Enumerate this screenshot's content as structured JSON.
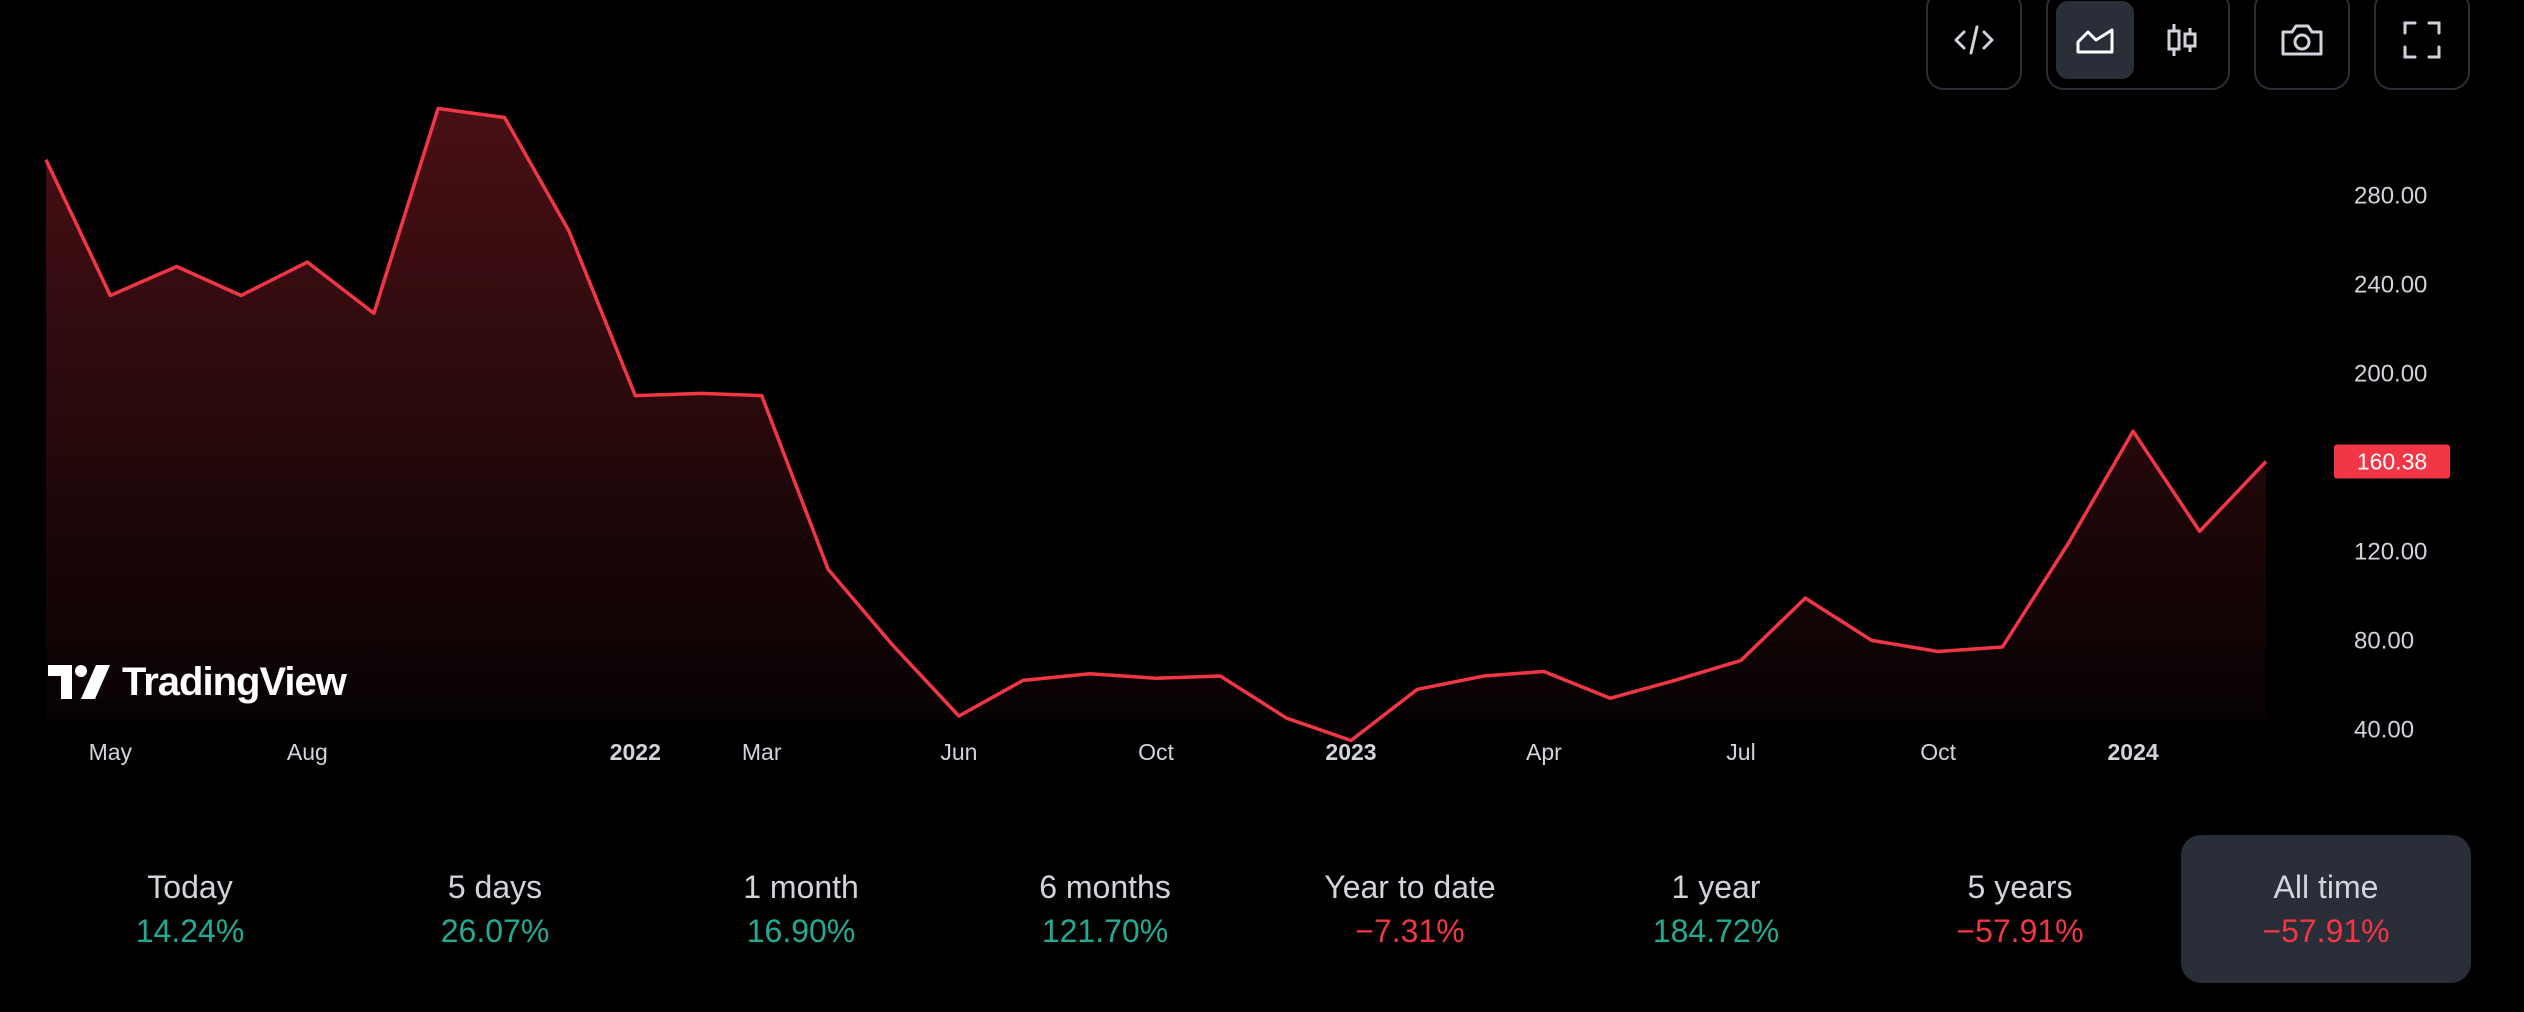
{
  "colors": {
    "background": "#000000",
    "line": "#f23645",
    "positive": "#22ab94",
    "negative": "#f23645",
    "text": "#d1d4dc"
  },
  "toolbar": {
    "embed_icon": "code-embed-icon",
    "area_chart_icon": "area-chart-icon",
    "candles_icon": "candlestick-icon",
    "snapshot_icon": "camera-icon",
    "fullscreen_icon": "fullscreen-icon",
    "active_chart_type": "area"
  },
  "watermark": {
    "text": "TradingView"
  },
  "chart_data": {
    "type": "area",
    "title": "",
    "xlabel": "",
    "ylabel": "",
    "ylim": [
      15,
      317
    ],
    "y_ticks": [
      "280.00",
      "240.00",
      "200.00",
      "120.00",
      "80.00",
      "40.00"
    ],
    "y_tick_values": [
      280,
      240,
      200,
      120,
      80,
      40
    ],
    "current_price": {
      "value": 160.38,
      "label": "160.38"
    },
    "x_ticks": [
      {
        "label": "May",
        "date": "2021-05-01",
        "year": false
      },
      {
        "label": "Aug",
        "date": "2021-08-01",
        "year": false
      },
      {
        "label": "2022",
        "date": "2022-01-01",
        "year": true
      },
      {
        "label": "Mar",
        "date": "2022-03-01",
        "year": false
      },
      {
        "label": "Jun",
        "date": "2022-06-01",
        "year": false
      },
      {
        "label": "Oct",
        "date": "2022-09-01",
        "year": false
      },
      {
        "label": "2023",
        "date": "2022-12-01",
        "year": true
      },
      {
        "label": "Apr",
        "date": "2023-03-01",
        "year": false
      },
      {
        "label": "Jul",
        "date": "2023-06-01",
        "year": false
      },
      {
        "label": "Oct",
        "date": "2023-09-01",
        "year": false
      },
      {
        "label": "2024",
        "date": "2023-12-01",
        "year": true
      }
    ],
    "series": [
      {
        "x": [
          "2021-04-01",
          "2021-05-01",
          "2021-06-01",
          "2021-07-01",
          "2021-08-01",
          "2021-09-01",
          "2021-10-01",
          "2021-11-01",
          "2021-12-01",
          "2022-01-01",
          "2022-02-01",
          "2022-03-01",
          "2022-04-01",
          "2022-05-01",
          "2022-06-01",
          "2022-07-01",
          "2022-08-01",
          "2022-09-01",
          "2022-10-01",
          "2022-11-01",
          "2022-12-01",
          "2023-01-01",
          "2023-02-01",
          "2023-03-01",
          "2023-04-01",
          "2023-05-01",
          "2023-06-01",
          "2023-07-01",
          "2023-08-01",
          "2023-09-01",
          "2023-10-01",
          "2023-11-01",
          "2023-12-01",
          "2024-01-01",
          "2024-02-01"
        ],
        "values": [
          296,
          235,
          248,
          235,
          250,
          227,
          319,
          315,
          264,
          190,
          191,
          190,
          112,
          78,
          46,
          62,
          65,
          63,
          64,
          45,
          35,
          58,
          64,
          66,
          54,
          62,
          71,
          99,
          80,
          75,
          77,
          124,
          174,
          129,
          160.38
        ]
      }
    ]
  },
  "periods": [
    {
      "label": "Today",
      "value": "14.24%",
      "trend": "positive"
    },
    {
      "label": "5 days",
      "value": "26.07%",
      "trend": "positive"
    },
    {
      "label": "1 month",
      "value": "16.90%",
      "trend": "positive"
    },
    {
      "label": "6 months",
      "value": "121.70%",
      "trend": "positive"
    },
    {
      "label": "Year to date",
      "value": "−7.31%",
      "trend": "negative"
    },
    {
      "label": "1 year",
      "value": "184.72%",
      "trend": "positive"
    },
    {
      "label": "5 years",
      "value": "−57.91%",
      "trend": "negative"
    },
    {
      "label": "All time",
      "value": "−57.91%",
      "trend": "negative",
      "active": true
    }
  ]
}
